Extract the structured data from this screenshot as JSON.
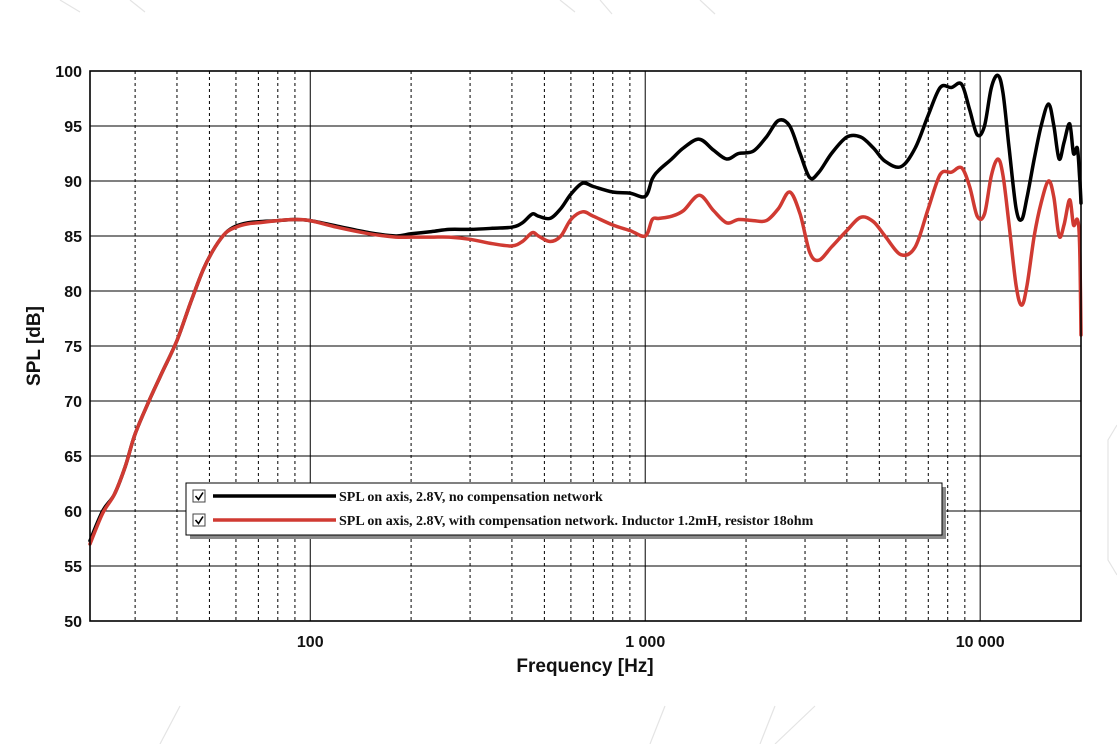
{
  "chart_data": {
    "type": "line",
    "xlabel": "Frequency [Hz]",
    "ylabel": "SPL [dB]",
    "x_scale": "log",
    "xlim": [
      22,
      20000
    ],
    "ylim": [
      50,
      100
    ],
    "x_ticks": [
      100,
      1000,
      10000
    ],
    "x_tick_labels": [
      "100",
      "1 000",
      "10 000"
    ],
    "y_ticks": [
      50,
      55,
      60,
      65,
      70,
      75,
      80,
      85,
      90,
      95,
      100
    ],
    "grid": true,
    "legend_position": "lower-left",
    "series": [
      {
        "name": "SPL on axis, 2.8V, no compensation network",
        "color": "#000000",
        "x": [
          22,
          24,
          26,
          28,
          30,
          33,
          36,
          40,
          44,
          48,
          52,
          56,
          60,
          65,
          70,
          80,
          90,
          100,
          120,
          150,
          180,
          200,
          230,
          260,
          300,
          350,
          400,
          430,
          460,
          480,
          520,
          560,
          600,
          650,
          700,
          800,
          900,
          1000,
          1050,
          1100,
          1200,
          1300,
          1450,
          1600,
          1750,
          1900,
          2100,
          2300,
          2500,
          2700,
          2900,
          3100,
          3300,
          3600,
          4000,
          4400,
          4800,
          5200,
          5800,
          6400,
          7000,
          7600,
          8200,
          8800,
          9300,
          9800,
          10300,
          10800,
          11300,
          11700,
          12200,
          12800,
          13300,
          13800,
          14500,
          15200,
          16000,
          16600,
          17200,
          17800,
          18500,
          19000,
          19500,
          19800,
          20000
        ],
        "y": [
          57.3,
          60.0,
          61.5,
          64.0,
          67.0,
          70.0,
          72.5,
          75.5,
          79.0,
          82.0,
          84.0,
          85.3,
          85.9,
          86.2,
          86.3,
          86.4,
          86.5,
          86.4,
          85.9,
          85.3,
          85.0,
          85.2,
          85.4,
          85.6,
          85.6,
          85.7,
          85.8,
          86.2,
          87.0,
          86.8,
          86.6,
          87.5,
          88.8,
          89.8,
          89.5,
          89.0,
          88.9,
          88.6,
          90.2,
          91.0,
          92.0,
          93.0,
          93.8,
          92.8,
          92.0,
          92.5,
          92.7,
          94.0,
          95.5,
          95.0,
          92.5,
          90.3,
          90.8,
          92.5,
          94.0,
          94.0,
          93.0,
          91.8,
          91.3,
          93.0,
          96.0,
          98.5,
          98.5,
          98.8,
          96.5,
          94.2,
          95.0,
          98.5,
          99.6,
          98.0,
          93.0,
          87.5,
          86.5,
          88.5,
          92.0,
          95.0,
          97.0,
          95.0,
          92.0,
          93.5,
          95.2,
          92.5,
          93.0,
          90.5,
          88.0
        ]
      },
      {
        "name": "SPL on axis, 2.8V, with compensation network. Inductor 1.2mH, resistor 18ohm",
        "color": "#d03a32",
        "x": [
          22,
          24,
          26,
          28,
          30,
          33,
          36,
          40,
          44,
          48,
          52,
          56,
          60,
          65,
          70,
          80,
          90,
          100,
          120,
          150,
          180,
          200,
          230,
          260,
          300,
          350,
          400,
          430,
          460,
          480,
          520,
          560,
          600,
          650,
          700,
          800,
          900,
          1000,
          1050,
          1100,
          1200,
          1300,
          1450,
          1600,
          1750,
          1900,
          2100,
          2300,
          2500,
          2700,
          2900,
          3100,
          3300,
          3600,
          4000,
          4400,
          4800,
          5200,
          5800,
          6400,
          7000,
          7600,
          8200,
          8800,
          9300,
          9800,
          10300,
          10800,
          11300,
          11700,
          12200,
          12800,
          13300,
          13800,
          14500,
          15200,
          16000,
          16600,
          17200,
          17800,
          18500,
          19000,
          19500,
          19800,
          20000
        ],
        "y": [
          57.0,
          59.8,
          61.5,
          64.0,
          67.0,
          70.0,
          72.5,
          75.5,
          79.0,
          82.0,
          84.0,
          85.3,
          85.8,
          86.1,
          86.2,
          86.4,
          86.5,
          86.4,
          85.8,
          85.2,
          84.9,
          84.9,
          84.9,
          84.9,
          84.7,
          84.3,
          84.1,
          84.5,
          85.3,
          85.0,
          84.5,
          85.0,
          86.5,
          87.2,
          86.8,
          86.0,
          85.5,
          85.0,
          86.5,
          86.6,
          86.8,
          87.3,
          88.7,
          87.3,
          86.2,
          86.5,
          86.4,
          86.4,
          87.5,
          89.0,
          87.0,
          83.5,
          82.8,
          84.0,
          85.5,
          86.7,
          86.3,
          85.0,
          83.3,
          84.0,
          87.5,
          90.6,
          90.8,
          91.2,
          89.5,
          86.8,
          87.0,
          90.5,
          92.0,
          90.5,
          86.0,
          80.5,
          78.7,
          80.5,
          85.0,
          88.0,
          90.0,
          88.5,
          85.0,
          86.0,
          88.3,
          86.0,
          86.5,
          84.5,
          76.0
        ]
      }
    ]
  }
}
